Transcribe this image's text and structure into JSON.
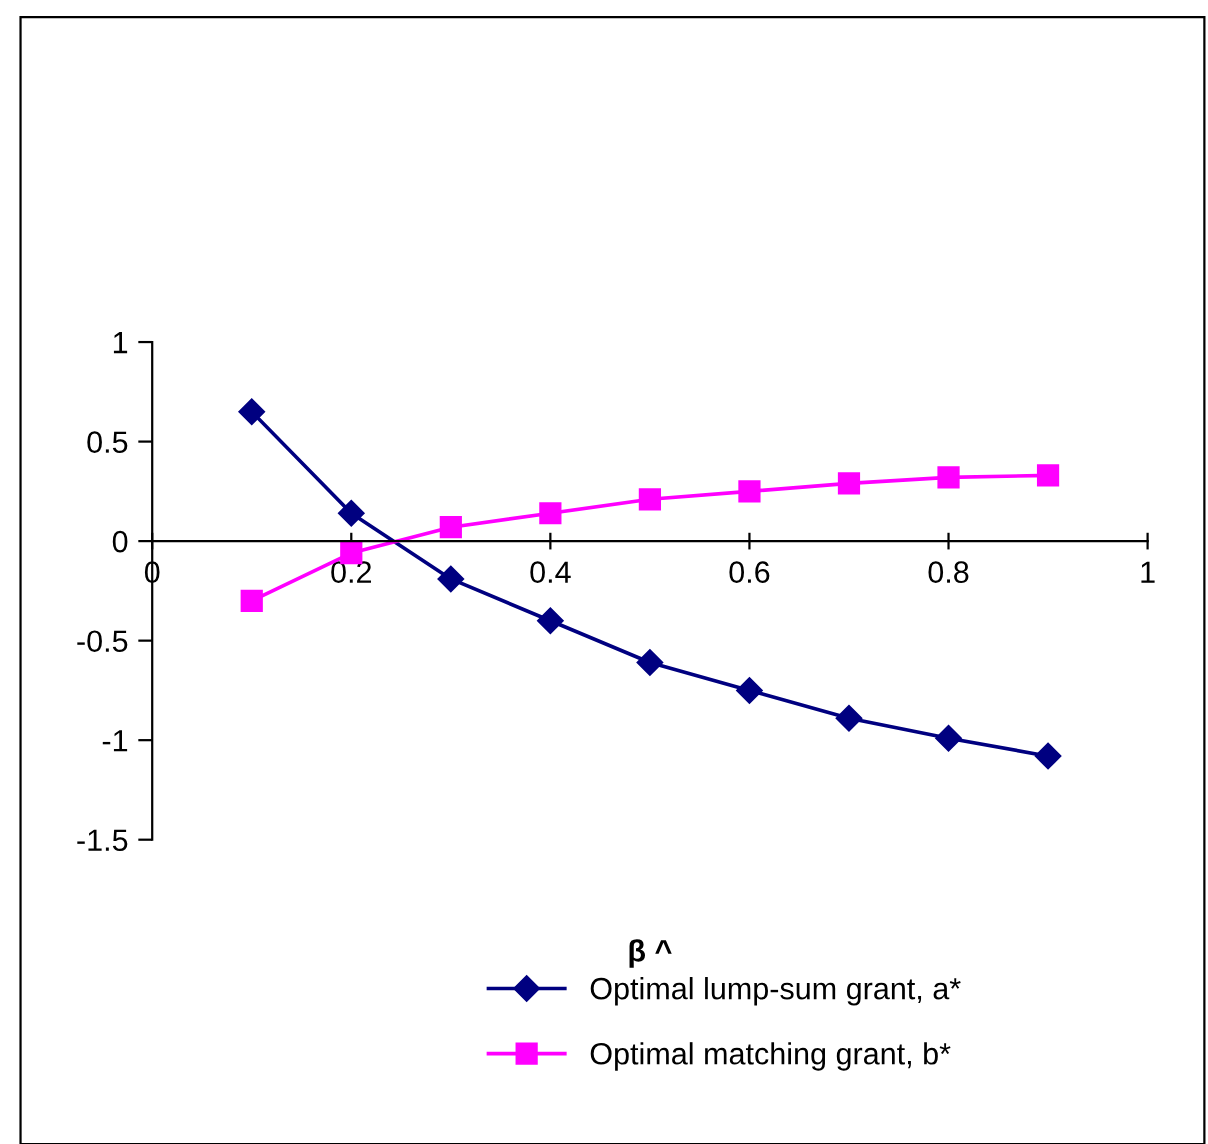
{
  "chart_data": {
    "type": "line",
    "xlabel": "β ^",
    "x": [
      0.1,
      0.2,
      0.3,
      0.4,
      0.5,
      0.6,
      0.7,
      0.8,
      0.9
    ],
    "series": [
      {
        "name": "Optimal lump-sum grant, a*",
        "color": "#000080",
        "marker": "diamond",
        "values": [
          0.65,
          0.14,
          -0.19,
          -0.4,
          -0.61,
          -0.75,
          -0.89,
          -0.99,
          -1.08
        ]
      },
      {
        "name": "Optimal matching grant, b*",
        "color": "#ff00ff",
        "marker": "square",
        "values": [
          -0.3,
          -0.06,
          0.07,
          0.14,
          0.21,
          0.25,
          0.29,
          0.32,
          0.33
        ]
      }
    ],
    "xlim": [
      0,
      1
    ],
    "xticks": [
      0,
      0.2,
      0.4,
      0.6,
      0.8,
      1
    ],
    "ylim": [
      -1.5,
      1
    ],
    "yticks": [
      -1.5,
      -1,
      -0.5,
      0,
      0.5,
      1
    ],
    "grid": false,
    "legend": "bottom"
  }
}
